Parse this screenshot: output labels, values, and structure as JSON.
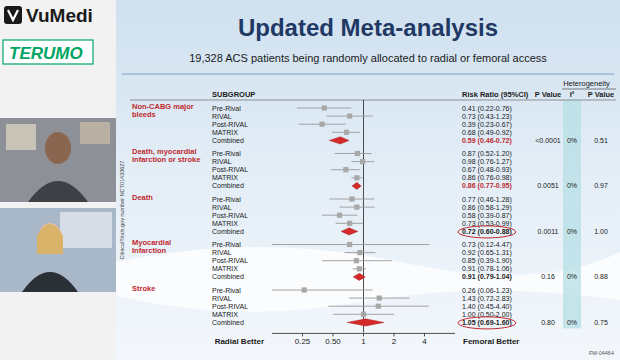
{
  "page": {
    "logos": [
      "VuMedi",
      "TERUMO"
    ]
  },
  "chart_data": {
    "type": "forest",
    "title": "Updated Meta-analysis",
    "subtitle": "19,328 ACS patients being randomly allocated to radial or femoral access",
    "side_note": "ClinicalTrials.gov number NCT01433627",
    "footnote": "FM-04464",
    "columns": {
      "subgroup": "SUBGROUP",
      "estimate": "Risk Ratio (95%CI)",
      "p": "P Value",
      "heterogeneity": "Heterogeneity",
      "i2": "I²",
      "p_het": "P Value"
    },
    "x_labels": [
      "Radial Better",
      "Femoral Better"
    ],
    "log": "x",
    "xlim": [
      0.125,
      8
    ],
    "xticks": [
      0.25,
      {
        "value": 0.5,
        "label": "0.50"
      },
      1,
      2,
      4
    ],
    "groups": [
      {
        "name": "Non-CABG major bleeds",
        "p": "<0.0001",
        "i2": "0%",
        "p_het": "0.51",
        "rows": [
          {
            "name": "Pre-Rival",
            "value": 0.41,
            "low": 0.22,
            "high": 0.76,
            "label": "0.41 (0.22-0.76)"
          },
          {
            "name": "RIVAL",
            "value": 0.73,
            "low": 0.43,
            "high": 1.23,
            "label": "0.73 (0.43-1.23)"
          },
          {
            "name": "Post-RIVAL",
            "value": 0.39,
            "low": 0.23,
            "high": 0.67,
            "label": "0.39 (0.23-0.67)"
          },
          {
            "name": "MATRIX",
            "value": 0.68,
            "low": 0.49,
            "high": 0.92,
            "label": "0.68 (0.49-0.92)"
          },
          {
            "name": "Combined",
            "value": 0.59,
            "low": 0.46,
            "high": 0.72,
            "label": "0.59 (0.46-0.72)"
          }
        ]
      },
      {
        "name": "Death, myocardial infarction or stroke",
        "p": "0.0051",
        "i2": "0%",
        "p_het": "0.97",
        "rows": [
          {
            "name": "Pre-Rival",
            "value": 0.87,
            "low": 0.52,
            "high": 1.2,
            "label": "0.87 (0.52-1.20)"
          },
          {
            "name": "RIVAL",
            "value": 0.98,
            "low": 0.76,
            "high": 1.27,
            "label": "0.98 (0.76-1.27)"
          },
          {
            "name": "Post-RIVAL",
            "value": 0.67,
            "low": 0.48,
            "high": 0.93,
            "label": "0.67 (0.48-0.93)"
          },
          {
            "name": "MATRIX",
            "value": 0.86,
            "low": 0.76,
            "high": 0.98,
            "label": "0.86 (0.76-0.98)"
          },
          {
            "name": "Combined",
            "value": 0.86,
            "low": 0.77,
            "high": 0.95,
            "label": "0.86 (0.77-0.95)"
          }
        ]
      },
      {
        "name": "Death",
        "p": "0.0011",
        "i2": "0%",
        "p_het": "1.00",
        "rows": [
          {
            "name": "Pre-Rival",
            "value": 0.77,
            "low": 0.46,
            "high": 1.28,
            "label": "0.77 (0.46-1.28)"
          },
          {
            "name": "RIVAL",
            "value": 0.86,
            "low": 0.58,
            "high": 1.29,
            "label": "0.86 (0.58-1.29)"
          },
          {
            "name": "Post-RIVAL",
            "value": 0.58,
            "low": 0.39,
            "high": 0.87,
            "label": "0.58 (0.39-0.87)"
          },
          {
            "name": "MATRIX",
            "value": 0.73,
            "low": 0.53,
            "high": 0.99,
            "label": "0.73 (0.53-0.99)"
          },
          {
            "name": "Combined",
            "value": 0.72,
            "low": 0.6,
            "high": 0.88,
            "label": "0.72 (0.60-0.88)"
          }
        ]
      },
      {
        "name": "Myocardial Infarction",
        "p": "0.16",
        "i2": "0%",
        "p_het": "0.88",
        "rows": [
          {
            "name": "Pre-Rival",
            "value": 0.73,
            "low": 0.12,
            "high": 4.47,
            "label": "0.73 (0.12-4.47)"
          },
          {
            "name": "RIVAL",
            "value": 0.92,
            "low": 0.65,
            "high": 1.31,
            "label": "0.92 (0.65-1.31)"
          },
          {
            "name": "Post-RIVAL",
            "value": 0.85,
            "low": 0.39,
            "high": 1.9,
            "label": "0.85 (0.39-1.90)"
          },
          {
            "name": "MATRIX",
            "value": 0.91,
            "low": 0.78,
            "high": 1.06,
            "label": "0.91 (0.78-1.06)"
          },
          {
            "name": "Combined",
            "value": 0.91,
            "low": 0.79,
            "high": 1.04,
            "label": "0.91 (0.79-1.04)"
          }
        ]
      },
      {
        "name": "Stroke",
        "p": "0.80",
        "i2": "0%",
        "p_het": "0.75",
        "rows": [
          {
            "name": "Pre-Rival",
            "value": 0.26,
            "low": 0.06,
            "high": 1.23,
            "label": "0.26 (0.06-1.23)"
          },
          {
            "name": "RIVAL",
            "value": 1.43,
            "low": 0.72,
            "high": 2.83,
            "label": "1.43 (0.72-2.83)"
          },
          {
            "name": "Post-RIVAL",
            "value": 1.4,
            "low": 0.45,
            "high": 4.4,
            "label": "1.40 (0.45-4.40)"
          },
          {
            "name": "MATRIX",
            "value": 1.0,
            "low": 0.5,
            "high": 2.0,
            "label": "1.00 (0.50-2.00)"
          },
          {
            "name": "Combined",
            "value": 1.05,
            "low": 0.69,
            "high": 1.6,
            "label": "1.05 (0.69-1.60)"
          }
        ]
      }
    ]
  }
}
